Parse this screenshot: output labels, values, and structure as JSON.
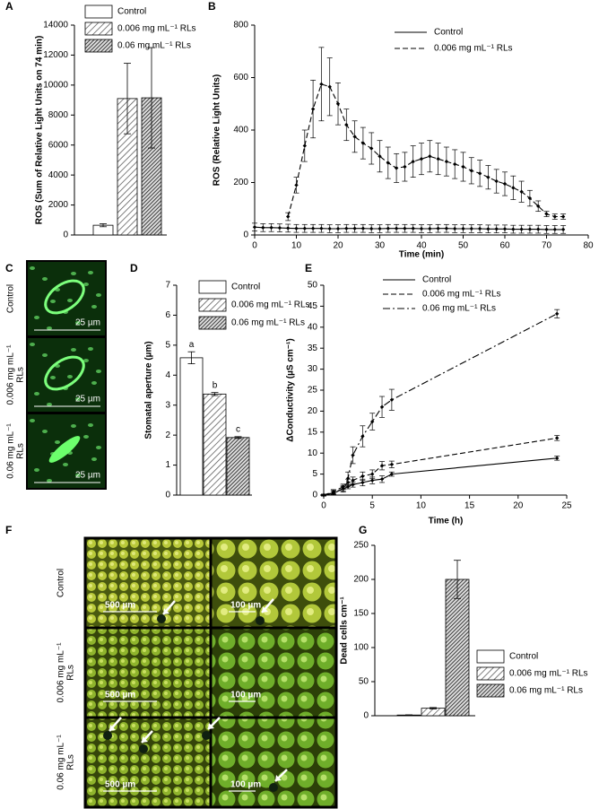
{
  "chart_data": [
    {
      "type": "bar",
      "panel": "A",
      "ylabel": "ROS (Sum of Relative Light Units on 74 min)",
      "ylim": [
        0,
        14000
      ],
      "yticks": [
        0,
        2000,
        4000,
        6000,
        8000,
        10000,
        12000,
        14000
      ],
      "series": [
        {
          "name": "Control",
          "color": "#000000",
          "hatch": "none",
          "values": [
            650
          ],
          "errors": [
            100
          ]
        },
        {
          "name": "0.006 mg mL⁻¹ RLs",
          "color": "#000000",
          "hatch": "sparse",
          "values": [
            9100
          ],
          "errors": [
            2350
          ]
        },
        {
          "name": "0.06 mg mL⁻¹ RLs",
          "color": "#000000",
          "hatch": "dense",
          "values": [
            9150
          ],
          "errors": [
            3350
          ]
        }
      ]
    },
    {
      "type": "line",
      "panel": "B",
      "ylabel": "ROS (Relative Light Units)",
      "xlabel": "Time (min)",
      "xlim": [
        0,
        80
      ],
      "xticks": [
        0,
        10,
        20,
        30,
        40,
        50,
        60,
        70,
        80
      ],
      "ylim": [
        0,
        800
      ],
      "yticks": [
        0,
        200,
        400,
        600,
        800
      ],
      "x": [
        0,
        2,
        4,
        6,
        8,
        10,
        12,
        14,
        16,
        18,
        20,
        22,
        24,
        26,
        28,
        30,
        32,
        34,
        36,
        38,
        40,
        42,
        44,
        46,
        48,
        50,
        52,
        54,
        56,
        58,
        60,
        62,
        64,
        66,
        68,
        70,
        72,
        74
      ],
      "series": [
        {
          "name": "Control",
          "color": "#000000",
          "linestyle": "solid",
          "values": [
            30,
            28,
            28,
            27,
            26,
            25,
            25,
            25,
            25,
            24,
            24,
            25,
            25,
            25,
            24,
            24,
            25,
            25,
            25,
            25,
            24,
            24,
            25,
            25,
            24,
            24,
            24,
            24,
            23,
            23,
            23,
            22,
            22,
            22,
            22,
            21,
            21,
            21
          ],
          "errors": [
            15,
            15,
            15,
            15,
            15,
            15,
            15,
            15,
            15,
            15,
            15,
            15,
            15,
            15,
            15,
            15,
            15,
            15,
            15,
            15,
            15,
            15,
            15,
            15,
            15,
            15,
            15,
            15,
            15,
            15,
            15,
            15,
            15,
            15,
            15,
            15,
            15,
            15
          ]
        },
        {
          "name": "0.006 mg mL⁻¹ RLs",
          "color": "#000000",
          "linestyle": "dashed",
          "values": [
            null,
            null,
            null,
            null,
            70,
            190,
            340,
            480,
            575,
            565,
            500,
            420,
            375,
            350,
            330,
            300,
            275,
            255,
            260,
            280,
            290,
            300,
            290,
            280,
            270,
            260,
            245,
            235,
            220,
            205,
            195,
            180,
            165,
            140,
            110,
            80,
            70,
            70
          ],
          "errors": [
            null,
            null,
            null,
            null,
            15,
            30,
            60,
            110,
            140,
            110,
            80,
            60,
            60,
            60,
            60,
            60,
            60,
            55,
            55,
            60,
            60,
            60,
            60,
            55,
            55,
            55,
            50,
            50,
            45,
            45,
            45,
            45,
            40,
            30,
            20,
            10,
            10,
            10
          ]
        }
      ]
    },
    {
      "type": "bar",
      "panel": "D",
      "ylabel": "Stomatal aperture (µm)",
      "ylim": [
        0,
        7
      ],
      "yticks": [
        0,
        1,
        2,
        3,
        4,
        5,
        6,
        7
      ],
      "series": [
        {
          "name": "Control",
          "color": "#000000",
          "hatch": "none",
          "values": [
            4.58
          ],
          "errors": [
            0.2
          ],
          "letters": [
            "a"
          ]
        },
        {
          "name": "0.006 mg mL⁻¹ RLs",
          "color": "#000000",
          "hatch": "sparse",
          "values": [
            3.37
          ],
          "errors": [
            0.05
          ],
          "letters": [
            "b"
          ]
        },
        {
          "name": "0.06 mg mL⁻¹ RLs",
          "color": "#000000",
          "hatch": "dense",
          "values": [
            1.92
          ],
          "errors": [
            0.03
          ],
          "letters": [
            "c"
          ]
        }
      ]
    },
    {
      "type": "line",
      "panel": "E",
      "ylabel": "ΔConductivity (µS cm⁻¹)",
      "xlabel": "Time (h)",
      "xlim": [
        0,
        25
      ],
      "xticks": [
        0,
        5,
        10,
        15,
        20,
        25
      ],
      "ylim": [
        0,
        50
      ],
      "yticks": [
        0,
        5,
        10,
        15,
        20,
        25,
        30,
        35,
        40,
        45,
        50
      ],
      "x": [
        0,
        1,
        2,
        2.5,
        3,
        4,
        5,
        6,
        7,
        24
      ],
      "series": [
        {
          "name": "Control",
          "color": "#000000",
          "linestyle": "solid",
          "values": [
            0,
            0.4,
            1.5,
            2,
            2.5,
            3,
            3.5,
            3.8,
            5,
            8.8
          ],
          "errors": [
            0.2,
            0.3,
            0.5,
            0.5,
            0.6,
            0.8,
            0.8,
            0.8,
            0.5,
            0.5
          ]
        },
        {
          "name": "0.006 mg mL⁻¹ RLs",
          "color": "#000000",
          "linestyle": "dashed",
          "values": [
            0,
            0.8,
            2,
            3,
            3.5,
            4.5,
            5,
            7,
            7.3,
            13.6
          ],
          "errors": [
            0.2,
            0.5,
            0.6,
            0.8,
            0.8,
            1,
            1,
            1,
            0.8,
            0.6
          ]
        },
        {
          "name": "0.06 mg mL⁻¹ RLs",
          "color": "#000000",
          "linestyle": "dash-dot",
          "values": [
            0,
            0.6,
            1.5,
            4,
            9.5,
            14,
            17.5,
            21,
            22.7,
            43.2
          ],
          "errors": [
            0.2,
            0.5,
            0.8,
            1.5,
            2,
            2.5,
            2,
            2.5,
            2.5,
            1
          ]
        }
      ]
    },
    {
      "type": "bar",
      "panel": "G",
      "ylabel": "Dead cells cm⁻¹",
      "ylim": [
        0,
        250
      ],
      "yticks": [
        0,
        50,
        100,
        150,
        200,
        250
      ],
      "series": [
        {
          "name": "Control",
          "color": "#000000",
          "hatch": "none",
          "values": [
            1
          ],
          "errors": [
            0.3
          ]
        },
        {
          "name": "0.006 mg mL⁻¹  RLs",
          "color": "#000000",
          "hatch": "sparse",
          "values": [
            11
          ],
          "errors": [
            1
          ]
        },
        {
          "name": "0.06 mg mL⁻¹ RLs",
          "color": "#000000",
          "hatch": "dense",
          "values": [
            200
          ],
          "errors": [
            28
          ]
        }
      ]
    }
  ],
  "panel_c": {
    "panel": "C",
    "rows": [
      {
        "label": [
          "Control"
        ],
        "scale": "25 µm"
      },
      {
        "label": [
          "0.006 mg mL⁻¹",
          "RLs"
        ],
        "scale": "25 µm"
      },
      {
        "label": [
          "0.06 mg mL⁻¹",
          "RLs"
        ],
        "scale": "25 µm"
      }
    ]
  },
  "panel_f": {
    "panel": "F",
    "rows": [
      {
        "label": [
          "Control"
        ],
        "scales": [
          "500 µm",
          "100 µm"
        ]
      },
      {
        "label": [
          "0.006 mg mL⁻¹",
          "RLs"
        ],
        "scales": [
          "500 µm",
          "100 µm"
        ]
      },
      {
        "label": [
          "0.06 mg mL⁻¹",
          "RLs"
        ],
        "scales": [
          "500 µm",
          "100 µm"
        ]
      }
    ]
  }
}
